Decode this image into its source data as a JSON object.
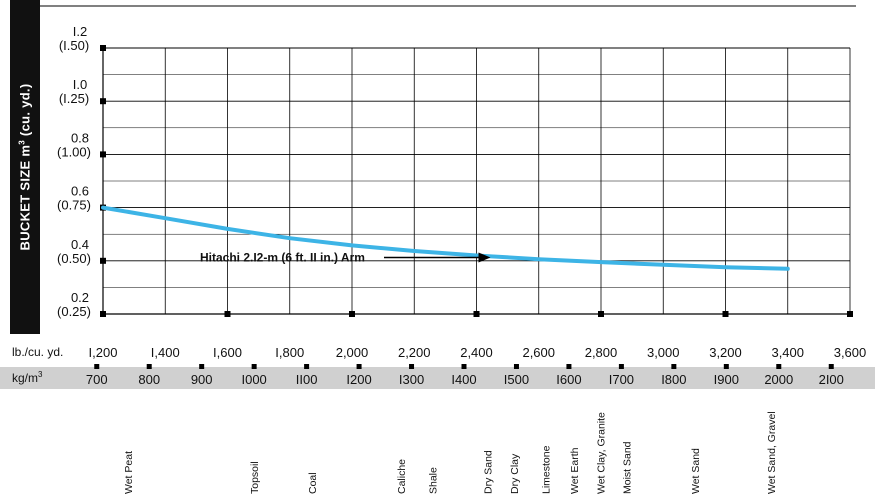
{
  "chart_data": {
    "type": "line",
    "ylabel_main": "BUCKET SIZE m",
    "ylabel_exp": "3",
    "ylabel_unit": "(cu. yd.)",
    "y_ticks": [
      {
        "m3": "0.2",
        "cuyd": "(0.25)"
      },
      {
        "m3": "0.4",
        "cuyd": "(0.50)"
      },
      {
        "m3": "0.6",
        "cuyd": "(0.75)"
      },
      {
        "m3": "0.8",
        "cuyd": "(1.00)"
      },
      {
        "m3": "I.0",
        "cuyd": "(I.25)"
      },
      {
        "m3": "I.2",
        "cuyd": "(I.50)"
      }
    ],
    "ylim_m3": [
      0.2,
      1.2
    ],
    "x_lb_label": "lb./cu. yd.",
    "x_lb_ticks": [
      "I,200",
      "I,400",
      "I,600",
      "I,800",
      "2,000",
      "2,200",
      "2,400",
      "2,600",
      "2,800",
      "3,000",
      "3,200",
      "3,400",
      "3,600"
    ],
    "xlim_lb": [
      1200,
      3600
    ],
    "x_kg_label": "kg/m",
    "x_kg_exp": "3",
    "x_kg_ticks": [
      "700",
      "800",
      "900",
      "I000",
      "II00",
      "I200",
      "I300",
      "I400",
      "I500",
      "I600",
      "I700",
      "I800",
      "I900",
      "2000",
      "2I00"
    ],
    "x_kg_values": [
      700,
      800,
      900,
      1000,
      1100,
      1200,
      1300,
      1400,
      1500,
      1600,
      1700,
      1800,
      1900,
      2000,
      2100
    ],
    "series": [
      {
        "name": "Hitachi 2.I2-m (6 ft. II in.) Arm",
        "color": "#3db4e6",
        "x_lb": [
          1200,
          1400,
          1600,
          1800,
          2000,
          2200,
          2400,
          2600,
          2800,
          3000,
          3200,
          3400
        ],
        "y_m3": [
          0.6,
          0.56,
          0.52,
          0.485,
          0.458,
          0.437,
          0.42,
          0.406,
          0.395,
          0.385,
          0.376,
          0.37
        ]
      }
    ],
    "annotation": {
      "text": "Hitachi 2.I2-m (6 ft. II in.) Arm",
      "x_lb": 2400,
      "y_m3": 0.42
    },
    "materials": [
      {
        "name": "Wet Peat",
        "kg": 760
      },
      {
        "name": "Topsoil",
        "kg": 1000
      },
      {
        "name": "Coal",
        "kg": 1110
      },
      {
        "name": "Caliche",
        "kg": 1280
      },
      {
        "name": "Shale",
        "kg": 1340
      },
      {
        "name": "Dry Sand",
        "kg": 1445
      },
      {
        "name": "Dry Clay",
        "kg": 1495
      },
      {
        "name": "Limestone",
        "kg": 1555
      },
      {
        "name": "Wet Earth",
        "kg": 1610
      },
      {
        "name": "Wet Clay, Granite",
        "kg": 1660
      },
      {
        "name": "Moist Sand",
        "kg": 1710
      },
      {
        "name": "Wet Sand",
        "kg": 1840
      },
      {
        "name": "Wet Sand, Gravel",
        "kg": 1985
      }
    ],
    "grid": true,
    "colors": {
      "line": "#3db4e6",
      "grid": "#000000",
      "band": "#d0d0d0",
      "ylabel_bg": "#111111"
    }
  }
}
